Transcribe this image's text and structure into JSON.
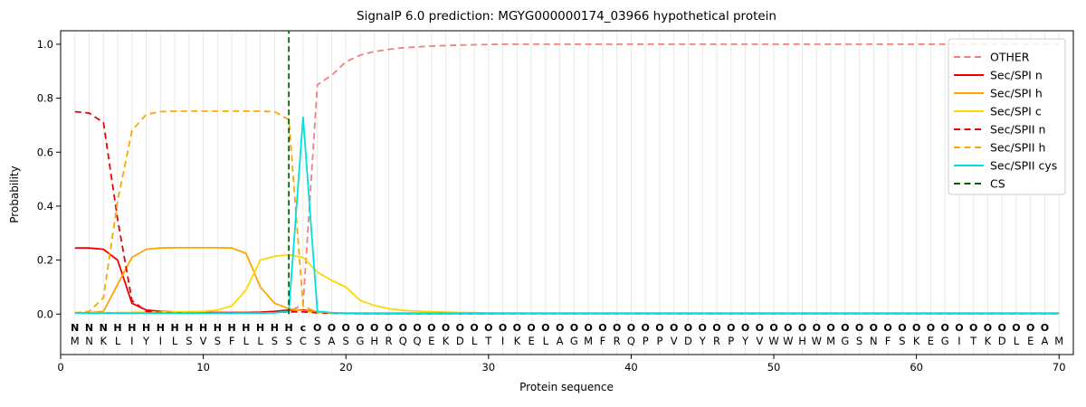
{
  "title": "SignalP 6.0 prediction: MGYG000000174_03966 hypothetical protein",
  "axes": {
    "xlabel": "Protein sequence",
    "ylabel": "Probability",
    "x_ticks": [
      0,
      10,
      20,
      30,
      40,
      50,
      60,
      70
    ],
    "y_ticks": [
      "0.0",
      "0.2",
      "0.4",
      "0.6",
      "0.8",
      "1.0"
    ],
    "y_tick_values": [
      0.0,
      0.2,
      0.4,
      0.6,
      0.8,
      1.0
    ],
    "xlim": [
      0,
      71
    ],
    "ylim": [
      -0.15,
      1.05
    ],
    "grid": "vertical-per-residue"
  },
  "colors": {
    "red": "#f00000",
    "orange": "#ffa500",
    "gold": "#ffd700",
    "pink": "#f08080",
    "cyan": "#00e0e0",
    "darkgreen": "#006400",
    "gray": "#7f7f7f",
    "sequence_text": "#1a1a1a",
    "gridline": "#e9e9e9",
    "spine": "#000000",
    "legend_border": "#cccccc"
  },
  "chart_data": {
    "type": "line",
    "positions_start": 1,
    "sequence": "MNKLIYILSVSFLLSSCSASGHRQQEKDLTIKELAGMFRQPPVDYRPYVWWHWMGSNFSKEGITKDLEAM",
    "annotation": "NNNHHHHHHHHHHHHHcOOOOOOOOOOOOOOOOOOOOOOOOOOOOOOOOOOOOOOOOOOOOOOOOOOOO",
    "annotation_colors": {
      "N": "#f00000",
      "H": "#ffa500",
      "c": "#00d8d8",
      "O": "#7f7f7f"
    },
    "cs_line": {
      "label": "CS",
      "position": 16,
      "color": "#006400",
      "style": "dashed"
    },
    "series": [
      {
        "name": "OTHER",
        "color": "#f08080",
        "style": "dashed",
        "values": [
          0.005,
          0.005,
          0.005,
          0.005,
          0.005,
          0.005,
          0.005,
          0.005,
          0.005,
          0.005,
          0.005,
          0.005,
          0.005,
          0.005,
          0.005,
          0.01,
          0.035,
          0.85,
          0.885,
          0.935,
          0.96,
          0.973,
          0.981,
          0.987,
          0.99,
          0.993,
          0.995,
          0.997,
          0.998,
          0.999,
          1.0,
          1.0,
          1.0,
          1.0,
          1.0,
          1.0,
          1.0,
          1.0,
          1.0,
          1.0,
          1.0,
          1.0,
          1.0,
          1.0,
          1.0,
          1.0,
          1.0,
          1.0,
          1.0,
          1.0,
          1.0,
          1.0,
          1.0,
          1.0,
          1.0,
          1.0,
          1.0,
          1.0,
          1.0,
          1.0,
          1.0,
          1.0,
          1.0,
          1.0,
          1.0,
          1.0,
          1.0,
          1.0,
          1.0,
          1.0
        ]
      },
      {
        "name": "Sec/SPI n",
        "color": "#f00000",
        "style": "solid",
        "values": [
          0.245,
          0.245,
          0.24,
          0.2,
          0.04,
          0.015,
          0.01,
          0.008,
          0.007,
          0.006,
          0.006,
          0.006,
          0.006,
          0.007,
          0.01,
          0.015,
          0.015,
          0.008,
          0.004,
          0.003,
          0.002,
          0.002,
          0.002,
          0.002,
          0.002,
          0.002,
          0.002,
          0.002,
          0.002,
          0.002,
          0.002,
          0.002,
          0.002,
          0.002,
          0.002,
          0.002,
          0.002,
          0.002,
          0.002,
          0.002,
          0.002,
          0.002,
          0.002,
          0.002,
          0.002,
          0.002,
          0.002,
          0.002,
          0.002,
          0.002,
          0.002,
          0.002,
          0.002,
          0.002,
          0.002,
          0.002,
          0.002,
          0.002,
          0.002,
          0.002,
          0.002,
          0.002,
          0.002,
          0.002,
          0.002,
          0.002,
          0.002,
          0.002,
          0.002,
          0.002
        ]
      },
      {
        "name": "Sec/SPI h",
        "color": "#ffa500",
        "style": "solid",
        "values": [
          0.004,
          0.005,
          0.01,
          0.11,
          0.21,
          0.24,
          0.245,
          0.246,
          0.246,
          0.246,
          0.246,
          0.245,
          0.225,
          0.1,
          0.04,
          0.02,
          0.012,
          0.007,
          0.005,
          0.004,
          0.003,
          0.003,
          0.003,
          0.003,
          0.003,
          0.003,
          0.003,
          0.003,
          0.003,
          0.003,
          0.003,
          0.003,
          0.003,
          0.003,
          0.003,
          0.003,
          0.003,
          0.003,
          0.003,
          0.003,
          0.003,
          0.003,
          0.003,
          0.003,
          0.003,
          0.003,
          0.003,
          0.003,
          0.003,
          0.003,
          0.003,
          0.003,
          0.003,
          0.003,
          0.003,
          0.003,
          0.003,
          0.003,
          0.003,
          0.003,
          0.003,
          0.003,
          0.003,
          0.003,
          0.003,
          0.003,
          0.003,
          0.003,
          0.003,
          0.003
        ]
      },
      {
        "name": "Sec/SPI c",
        "color": "#ffd700",
        "style": "solid",
        "values": [
          0.003,
          0.003,
          0.004,
          0.005,
          0.006,
          0.007,
          0.008,
          0.008,
          0.009,
          0.01,
          0.015,
          0.03,
          0.09,
          0.2,
          0.214,
          0.22,
          0.21,
          0.155,
          0.125,
          0.1,
          0.05,
          0.032,
          0.02,
          0.014,
          0.011,
          0.009,
          0.007,
          0.006,
          0.005,
          0.004,
          0.003,
          0.003,
          0.003,
          0.003,
          0.003,
          0.003,
          0.003,
          0.003,
          0.003,
          0.003,
          0.003,
          0.003,
          0.003,
          0.003,
          0.003,
          0.003,
          0.003,
          0.003,
          0.003,
          0.003,
          0.003,
          0.003,
          0.003,
          0.003,
          0.003,
          0.003,
          0.003,
          0.003,
          0.003,
          0.003,
          0.003,
          0.003,
          0.003,
          0.003,
          0.003,
          0.003,
          0.003,
          0.003,
          0.003,
          0.003
        ]
      },
      {
        "name": "Sec/SPII n",
        "color": "#f00000",
        "style": "dashed",
        "values": [
          0.75,
          0.745,
          0.71,
          0.35,
          0.05,
          0.01,
          0.006,
          0.005,
          0.004,
          0.004,
          0.004,
          0.004,
          0.004,
          0.005,
          0.006,
          0.008,
          0.008,
          0.005,
          0.003,
          0.003,
          0.003,
          0.003,
          0.003,
          0.003,
          0.003,
          0.003,
          0.003,
          0.003,
          0.003,
          0.003,
          0.003,
          0.003,
          0.003,
          0.003,
          0.003,
          0.003,
          0.003,
          0.003,
          0.003,
          0.003,
          0.003,
          0.003,
          0.003,
          0.003,
          0.003,
          0.003,
          0.003,
          0.003,
          0.003,
          0.003,
          0.003,
          0.003,
          0.003,
          0.003,
          0.003,
          0.003,
          0.003,
          0.003,
          0.003,
          0.003,
          0.003,
          0.003,
          0.003,
          0.003,
          0.003,
          0.003,
          0.003,
          0.003,
          0.003,
          0.003
        ]
      },
      {
        "name": "Sec/SPII h",
        "color": "#ffa500",
        "style": "dashed",
        "values": [
          0.005,
          0.01,
          0.06,
          0.42,
          0.68,
          0.74,
          0.75,
          0.752,
          0.752,
          0.752,
          0.752,
          0.752,
          0.752,
          0.752,
          0.75,
          0.72,
          0.03,
          0.006,
          0.004,
          0.003,
          0.003,
          0.003,
          0.003,
          0.003,
          0.003,
          0.003,
          0.003,
          0.003,
          0.003,
          0.003,
          0.003,
          0.003,
          0.003,
          0.003,
          0.003,
          0.003,
          0.003,
          0.003,
          0.003,
          0.003,
          0.003,
          0.003,
          0.003,
          0.003,
          0.003,
          0.003,
          0.003,
          0.003,
          0.003,
          0.003,
          0.003,
          0.003,
          0.003,
          0.003,
          0.003,
          0.003,
          0.003,
          0.003,
          0.003,
          0.003,
          0.003,
          0.003,
          0.003,
          0.003,
          0.003,
          0.003,
          0.003,
          0.003,
          0.003,
          0.003
        ]
      },
      {
        "name": "Sec/SPII cys",
        "color": "#00e0e0",
        "style": "solid",
        "values": [
          0.004,
          0.004,
          0.004,
          0.004,
          0.004,
          0.004,
          0.004,
          0.004,
          0.004,
          0.004,
          0.004,
          0.004,
          0.004,
          0.004,
          0.005,
          0.01,
          0.73,
          0.01,
          0.005,
          0.004,
          0.004,
          0.004,
          0.004,
          0.004,
          0.004,
          0.004,
          0.004,
          0.004,
          0.004,
          0.004,
          0.004,
          0.004,
          0.004,
          0.004,
          0.004,
          0.004,
          0.004,
          0.004,
          0.004,
          0.004,
          0.004,
          0.004,
          0.004,
          0.004,
          0.004,
          0.004,
          0.004,
          0.004,
          0.004,
          0.004,
          0.004,
          0.004,
          0.004,
          0.004,
          0.004,
          0.004,
          0.004,
          0.004,
          0.004,
          0.004,
          0.004,
          0.004,
          0.004,
          0.004,
          0.004,
          0.004,
          0.004,
          0.004,
          0.004,
          0.004
        ]
      }
    ]
  },
  "legend": {
    "position": "upper-right",
    "entries": [
      {
        "label": "OTHER",
        "color": "#f08080",
        "dashed": true
      },
      {
        "label": "Sec/SPI n",
        "color": "#f00000",
        "dashed": false
      },
      {
        "label": "Sec/SPI h",
        "color": "#ffa500",
        "dashed": false
      },
      {
        "label": "Sec/SPI c",
        "color": "#ffd700",
        "dashed": false
      },
      {
        "label": "Sec/SPII n",
        "color": "#f00000",
        "dashed": true
      },
      {
        "label": "Sec/SPII h",
        "color": "#ffa500",
        "dashed": true
      },
      {
        "label": "Sec/SPII cys",
        "color": "#00e0e0",
        "dashed": false
      },
      {
        "label": "CS",
        "color": "#006400",
        "dashed": true
      }
    ]
  }
}
